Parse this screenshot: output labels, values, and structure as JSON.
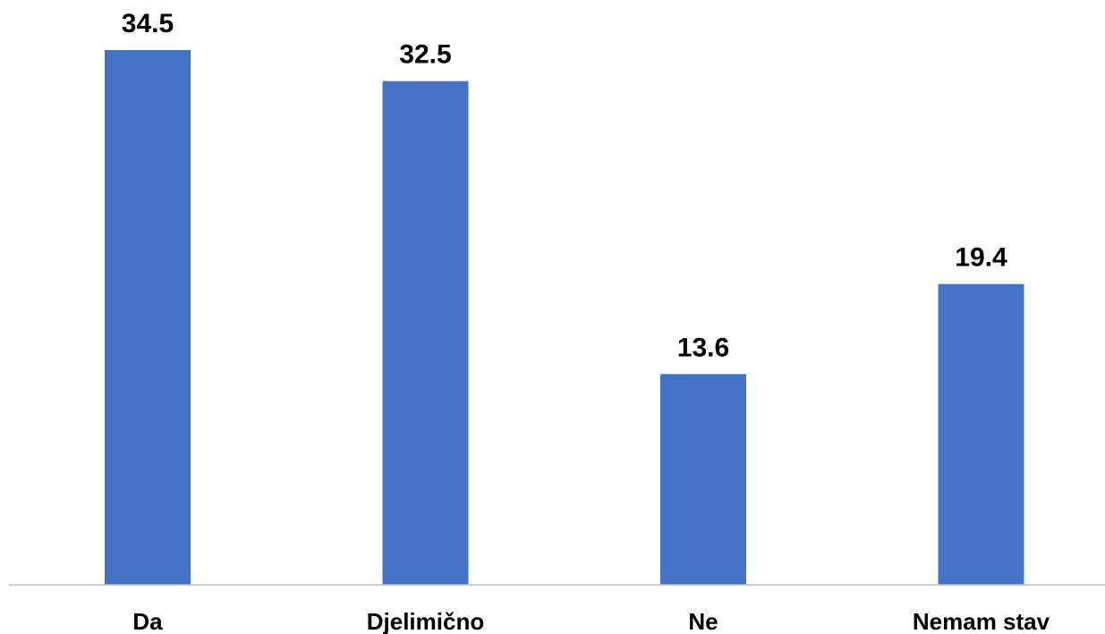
{
  "chart_data": {
    "type": "bar",
    "title": "",
    "xlabel": "",
    "ylabel": "",
    "categories": [
      "Da",
      "Djelimično",
      "Ne",
      "Nemam stav"
    ],
    "values": [
      34.5,
      32.5,
      13.6,
      19.4
    ],
    "data_labels": [
      "34.5",
      "32.5",
      "13.6",
      "19.4"
    ],
    "ylim": [
      0,
      34.5
    ],
    "grid": false,
    "legend": "none",
    "bar_color": "#4472C4",
    "axis_color": "#BFBFBF"
  }
}
